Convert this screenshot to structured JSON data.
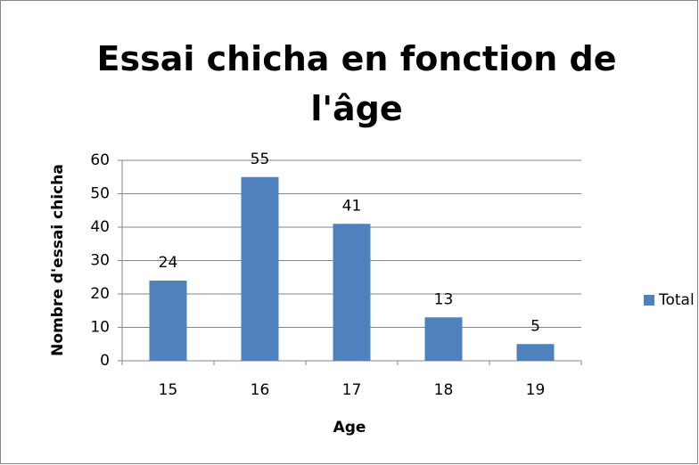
{
  "chart_data": {
    "type": "bar",
    "title": "Essai chicha en fonction de l'âge",
    "xlabel": "Age",
    "ylabel": "Nombre d'essai chicha",
    "categories": [
      "15",
      "16",
      "17",
      "18",
      "19"
    ],
    "series": [
      {
        "name": "Total",
        "color": "#4f81bd",
        "values": [
          24,
          55,
          41,
          13,
          5
        ]
      }
    ],
    "ylim": [
      0,
      60
    ],
    "yticks": [
      0,
      10,
      20,
      30,
      40,
      50,
      60
    ],
    "grid": true,
    "legend": "right"
  }
}
